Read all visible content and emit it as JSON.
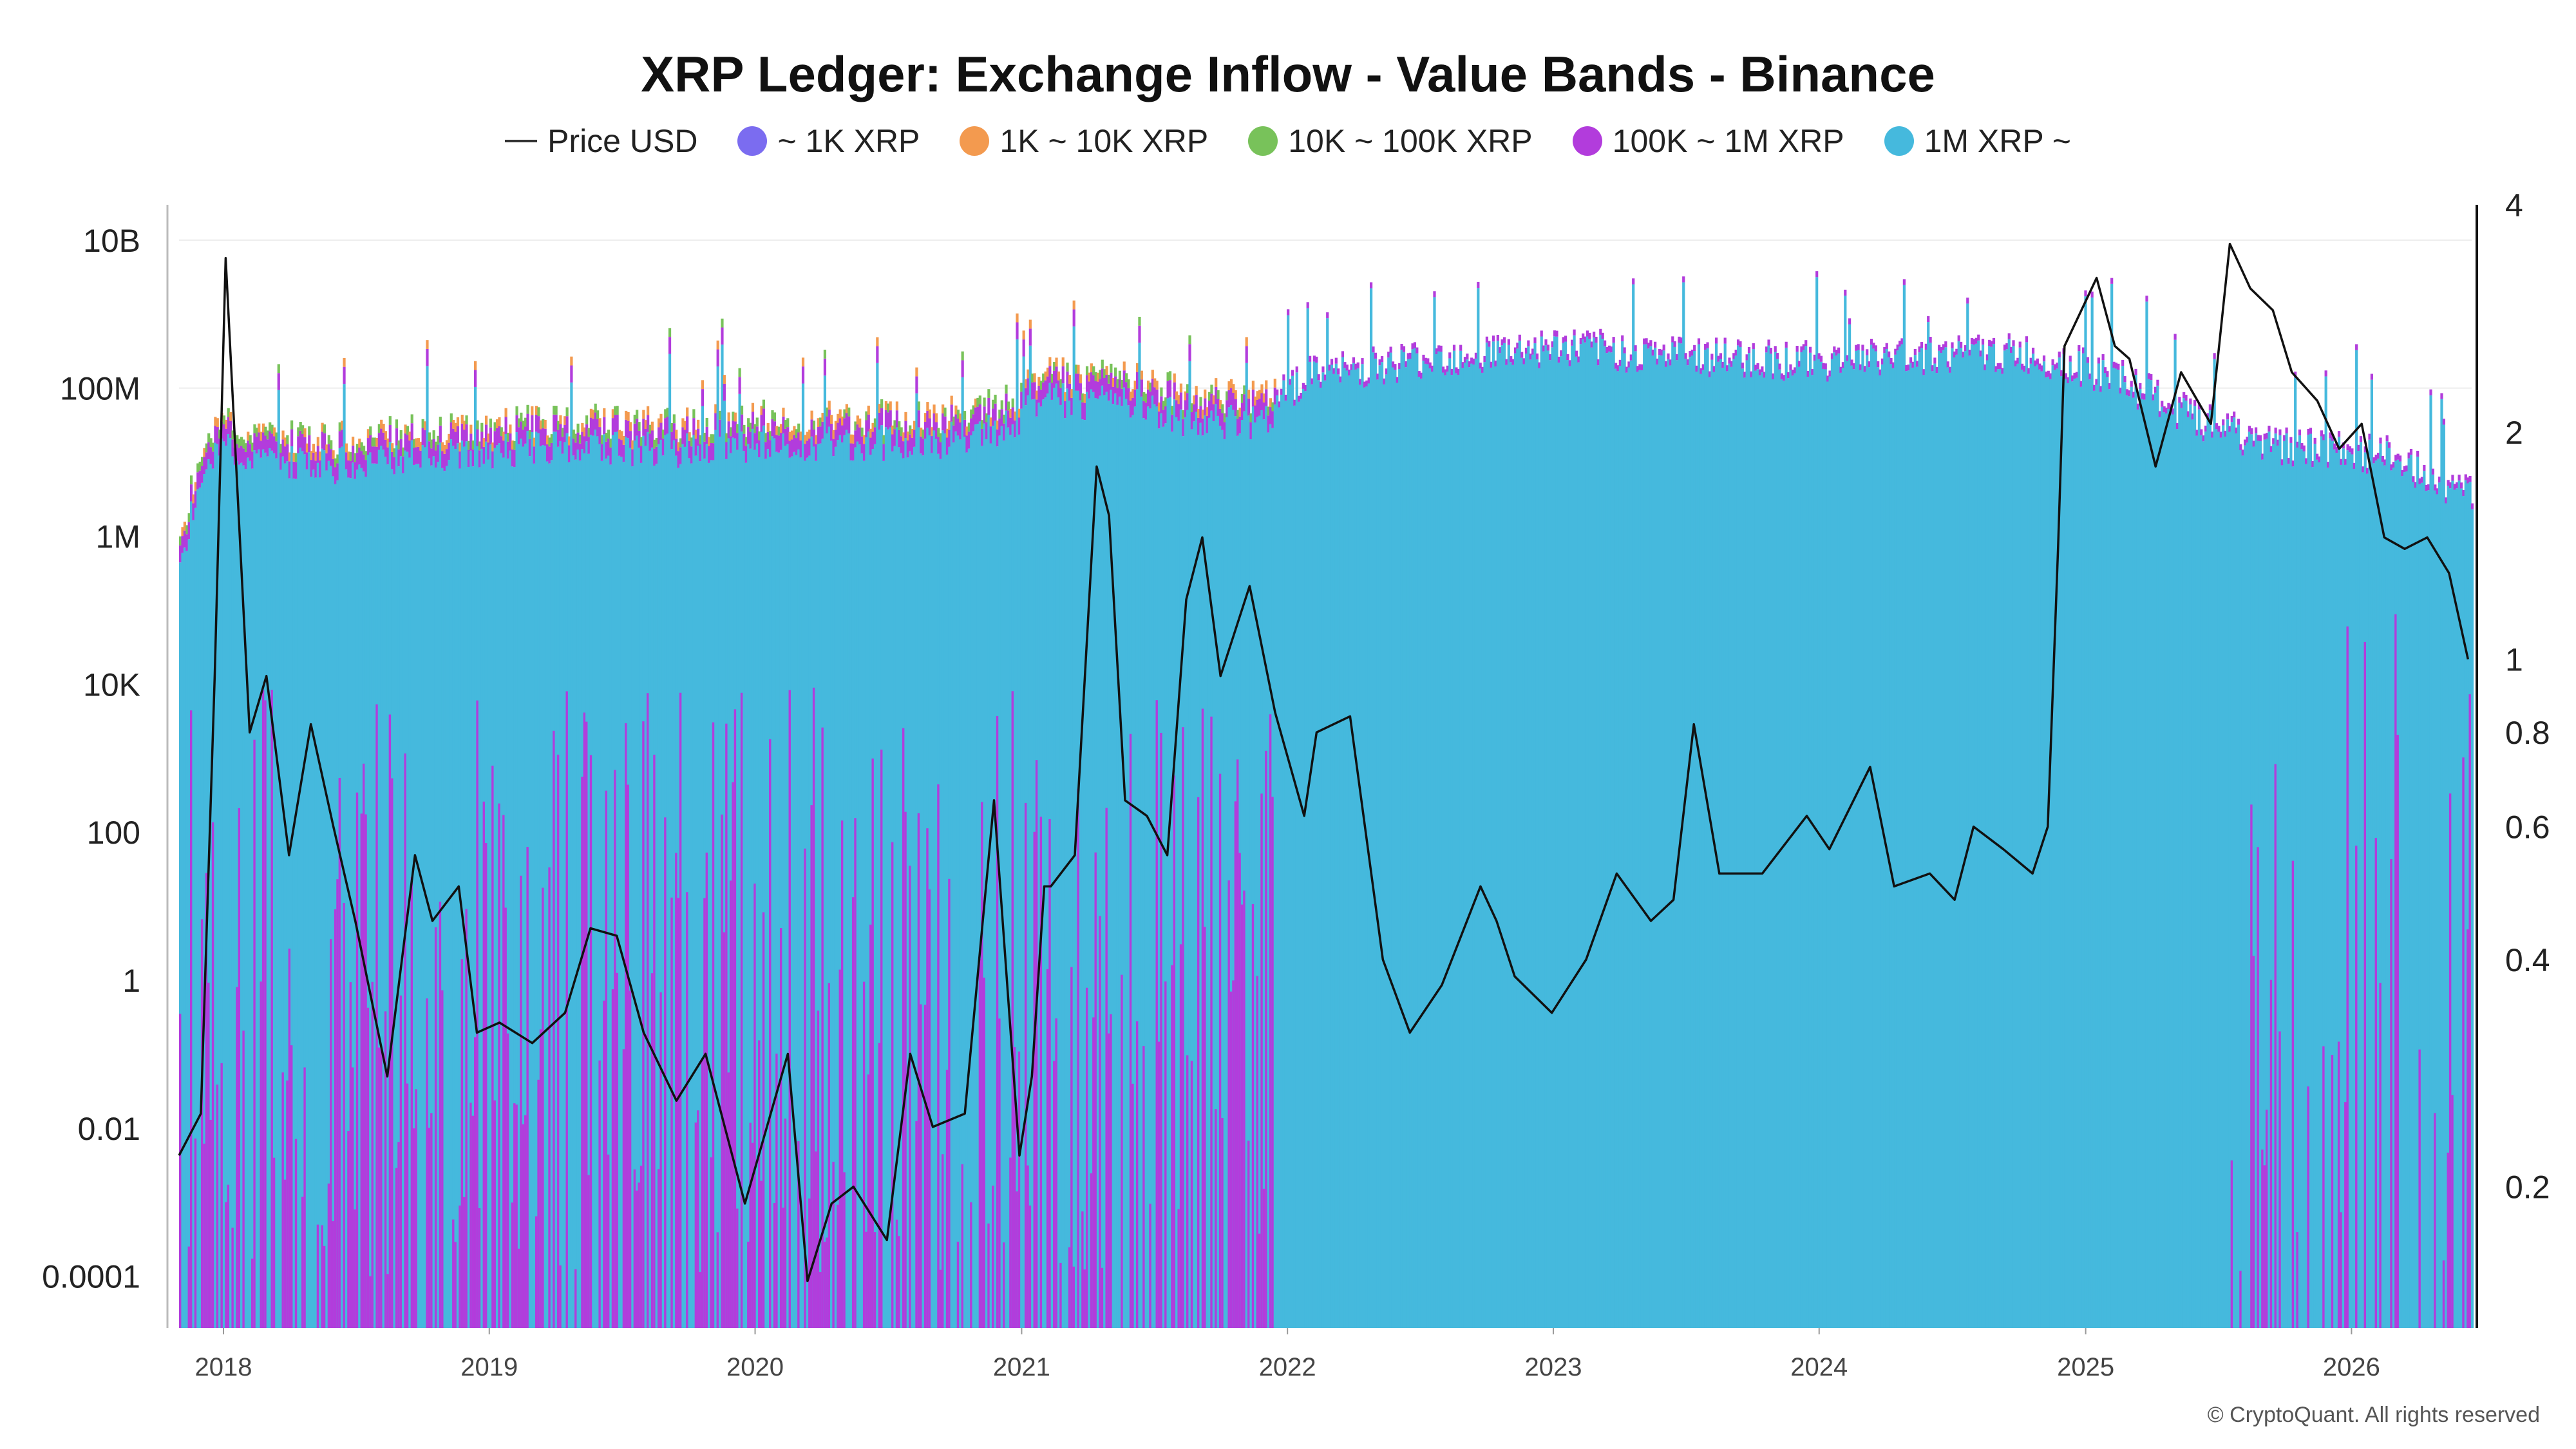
{
  "chart_data": {
    "type": "bar",
    "title": "XRP Ledger: Exchange Inflow - Value Bands - Binance",
    "xlabel": "",
    "ylabel": "",
    "x_range": [
      "2017-11-01",
      "2026-06-15"
    ],
    "x_ticks": [
      "2018",
      "2019",
      "2020",
      "2021",
      "2022",
      "2023",
      "2024",
      "2025",
      "2026"
    ],
    "y_left": {
      "scale": "log",
      "range": [
        2e-05,
        30000000000
      ],
      "ticks": [
        {
          "value": 0.0001,
          "label": "0.0001"
        },
        {
          "value": 0.01,
          "label": "0.01"
        },
        {
          "value": 1,
          "label": "1"
        },
        {
          "value": 100,
          "label": "100"
        },
        {
          "value": 10000,
          "label": "10K"
        },
        {
          "value": 1000000,
          "label": "1M"
        },
        {
          "value": 100000000,
          "label": "100M"
        },
        {
          "value": 10000000000,
          "label": "10B"
        }
      ]
    },
    "y_right": {
      "scale": "log",
      "range": [
        0.13,
        4
      ],
      "ticks": [
        {
          "value": 0.2,
          "label": "0.2"
        },
        {
          "value": 0.4,
          "label": "0.4"
        },
        {
          "value": 0.6,
          "label": "0.6"
        },
        {
          "value": 0.8,
          "label": "0.8"
        },
        {
          "value": 1,
          "label": "1"
        },
        {
          "value": 2,
          "label": "2"
        },
        {
          "value": 4,
          "label": "4"
        }
      ]
    },
    "legend_position": "top-center",
    "grid": true,
    "stacked_series": [
      {
        "name": "~ 1K XRP",
        "color": "#7b6cf0"
      },
      {
        "name": "1K ~ 10K XRP",
        "color": "#f39a4f"
      },
      {
        "name": "10K ~ 100K XRP",
        "color": "#78c25a"
      },
      {
        "name": "100K ~ 1M XRP",
        "color": "#b23cdc"
      },
      {
        "name": "1M XRP ~",
        "color": "#45b9dd"
      }
    ],
    "price_series": {
      "name": "Price USD",
      "color": "#111111"
    },
    "inflow_total_envelope": {
      "x": [
        "2017-11",
        "2017-12",
        "2018-01",
        "2018-03",
        "2018-06",
        "2018-09",
        "2019-01",
        "2019-05",
        "2019-09",
        "2020-01",
        "2020-05",
        "2020-09",
        "2020-12",
        "2021-02",
        "2021-06",
        "2021-09",
        "2021-12",
        "2022-02",
        "2022-06",
        "2022-09",
        "2023-01",
        "2023-06",
        "2024-01",
        "2024-06",
        "2024-10",
        "2024-12",
        "2025-03",
        "2025-06",
        "2025-09",
        "2025-12",
        "2026-03",
        "2026-06"
      ],
      "y_log10": [
        6.0,
        7.2,
        7.6,
        7.4,
        7.3,
        7.4,
        7.5,
        7.6,
        7.5,
        7.6,
        7.6,
        7.6,
        7.8,
        8.2,
        8.1,
        7.9,
        7.9,
        8.2,
        8.4,
        8.5,
        8.6,
        8.5,
        8.4,
        8.5,
        8.5,
        8.4,
        8.1,
        7.6,
        7.3,
        7.2,
        7.1,
        6.6
      ]
    },
    "price_usd": {
      "x": [
        "2017-11-01",
        "2017-12-01",
        "2017-12-20",
        "2018-01-04",
        "2018-02-06",
        "2018-03-01",
        "2018-04-01",
        "2018-05-01",
        "2018-06-01",
        "2018-07-01",
        "2018-08-14",
        "2018-09-21",
        "2018-10-15",
        "2018-11-20",
        "2018-12-15",
        "2019-01-15",
        "2019-03-01",
        "2019-04-15",
        "2019-05-20",
        "2019-06-25",
        "2019-08-01",
        "2019-09-15",
        "2019-10-25",
        "2019-12-18",
        "2020-02-15",
        "2020-03-13",
        "2020-04-15",
        "2020-05-15",
        "2020-06-30",
        "2020-08-01",
        "2020-09-01",
        "2020-10-15",
        "2020-11-24",
        "2020-12-29",
        "2021-01-15",
        "2021-02-01",
        "2021-02-10",
        "2021-03-15",
        "2021-04-14",
        "2021-05-01",
        "2021-05-23",
        "2021-06-22",
        "2021-07-20",
        "2021-08-15",
        "2021-09-06",
        "2021-10-01",
        "2021-11-10",
        "2021-12-15",
        "2022-01-24",
        "2022-02-10",
        "2022-03-28",
        "2022-05-12",
        "2022-06-18",
        "2022-08-01",
        "2022-09-23",
        "2022-10-15",
        "2022-11-09",
        "2022-12-30",
        "2023-02-15",
        "2023-03-29",
        "2023-05-15",
        "2023-06-15",
        "2023-07-13",
        "2023-08-17",
        "2023-10-15",
        "2023-12-15",
        "2024-01-15",
        "2024-03-11",
        "2024-04-13",
        "2024-06-01",
        "2024-07-05",
        "2024-07-31",
        "2024-09-10",
        "2024-10-20",
        "2024-11-10",
        "2024-11-24",
        "2024-12-03",
        "2025-01-16",
        "2025-02-10",
        "2025-03-02",
        "2025-04-07",
        "2025-05-12",
        "2025-06-22",
        "2025-07-18",
        "2025-08-15",
        "2025-09-15",
        "2025-10-11",
        "2025-11-15",
        "2025-12-15",
        "2026-01-15",
        "2026-02-15",
        "2026-03-15",
        "2026-04-15",
        "2026-05-15",
        "2026-06-10"
      ],
      "y": [
        0.22,
        0.25,
        0.95,
        3.4,
        0.8,
        0.95,
        0.55,
        0.82,
        0.6,
        0.45,
        0.28,
        0.55,
        0.45,
        0.5,
        0.32,
        0.33,
        0.31,
        0.34,
        0.44,
        0.43,
        0.32,
        0.26,
        0.3,
        0.19,
        0.3,
        0.15,
        0.19,
        0.2,
        0.17,
        0.3,
        0.24,
        0.25,
        0.65,
        0.22,
        0.28,
        0.5,
        0.5,
        0.55,
        1.8,
        1.55,
        0.65,
        0.62,
        0.55,
        1.2,
        1.45,
        0.95,
        1.25,
        0.85,
        0.62,
        0.8,
        0.84,
        0.4,
        0.32,
        0.37,
        0.5,
        0.45,
        0.38,
        0.34,
        0.4,
        0.52,
        0.45,
        0.48,
        0.82,
        0.52,
        0.52,
        0.62,
        0.56,
        0.72,
        0.5,
        0.52,
        0.48,
        0.6,
        0.56,
        0.52,
        0.6,
        1.4,
        2.6,
        3.2,
        2.6,
        2.5,
        1.8,
        2.4,
        2.05,
        3.55,
        3.1,
        2.9,
        2.4,
        2.2,
        1.9,
        2.05,
        1.45,
        1.4,
        1.45,
        1.3,
        1.0
      ]
    }
  },
  "footer": {
    "credit": "© CryptoQuant. All rights reserved"
  }
}
